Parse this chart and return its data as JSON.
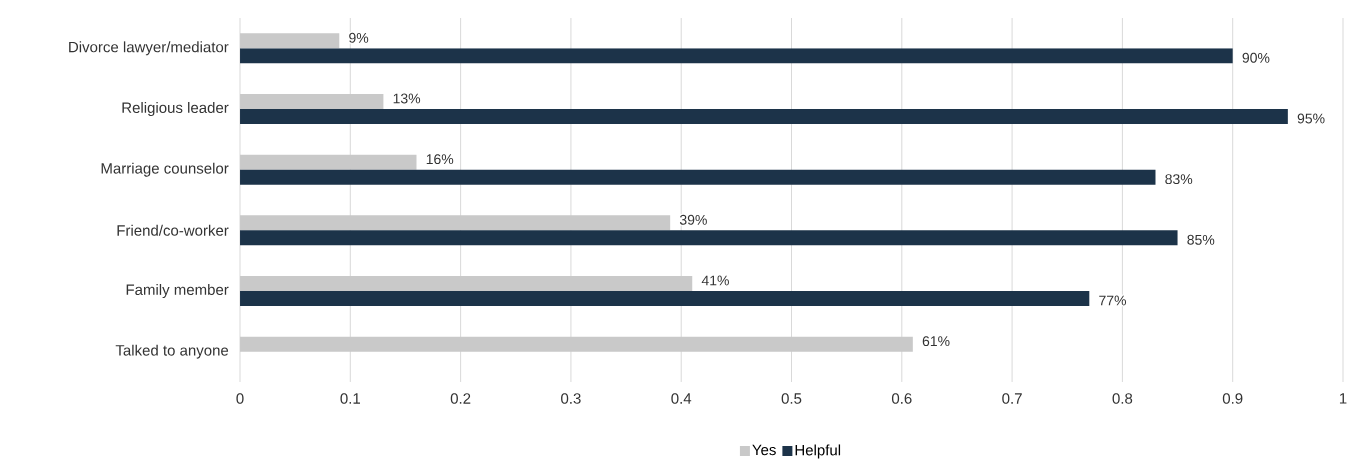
{
  "chart_data": {
    "type": "bar",
    "orientation": "horizontal",
    "categories": [
      "Divorce lawyer/mediator",
      "Religious leader",
      "Marriage counselor",
      "Friend/co-worker",
      "Family member",
      "Talked to anyone"
    ],
    "series": [
      {
        "name": "Yes",
        "color": "#c9c9c9",
        "values": [
          0.09,
          0.13,
          0.16,
          0.39,
          0.41,
          0.61
        ],
        "value_labels": [
          "9%",
          "13%",
          "16%",
          "39%",
          "41%",
          "61%"
        ]
      },
      {
        "name": "Helpful",
        "color": "#1c3349",
        "values": [
          0.9,
          0.95,
          0.83,
          0.85,
          0.77,
          null
        ],
        "value_labels": [
          "90%",
          "95%",
          "83%",
          "85%",
          "77%",
          null
        ]
      }
    ],
    "xlim": [
      0,
      1
    ],
    "xticks": [
      0,
      0.1,
      0.2,
      0.3,
      0.4,
      0.5,
      0.6,
      0.7,
      0.8,
      0.9,
      1
    ],
    "grid": "x",
    "legend": "bottom"
  }
}
